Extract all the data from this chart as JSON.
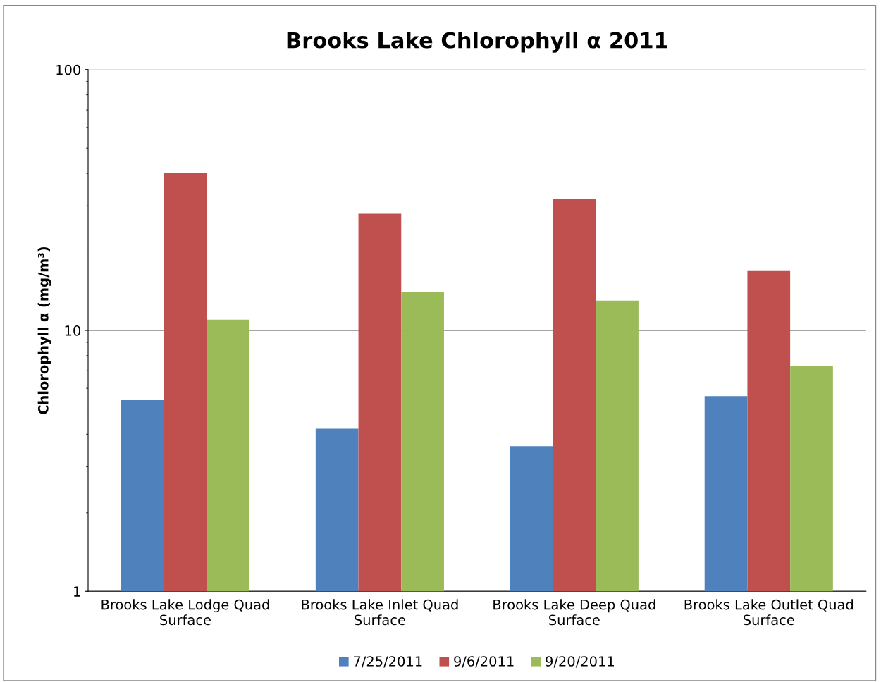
{
  "chart_data": {
    "type": "bar",
    "title": "Brooks Lake Chlorophyll α 2011",
    "ylabel": "Chlorophyll α (mg/m³)",
    "categories": [
      "Brooks Lake Lodge Quad Surface",
      "Brooks Lake Inlet Quad Surface",
      "Brooks Lake Deep Quad Surface",
      "Brooks Lake Outlet Quad Surface"
    ],
    "series": [
      {
        "name": "7/25/2011",
        "color": "#4f81bd",
        "values": [
          5.4,
          4.2,
          3.6,
          5.6
        ]
      },
      {
        "name": "9/6/2011",
        "color": "#c0504d",
        "values": [
          40,
          28,
          32,
          17
        ]
      },
      {
        "name": "9/20/2011",
        "color": "#9bbb59",
        "values": [
          11,
          14,
          13,
          7.3
        ]
      }
    ],
    "log": "y",
    "ylim": [
      1,
      100
    ],
    "yticks": [
      1,
      10,
      100
    ],
    "grid": "y",
    "legend": "bottom"
  }
}
